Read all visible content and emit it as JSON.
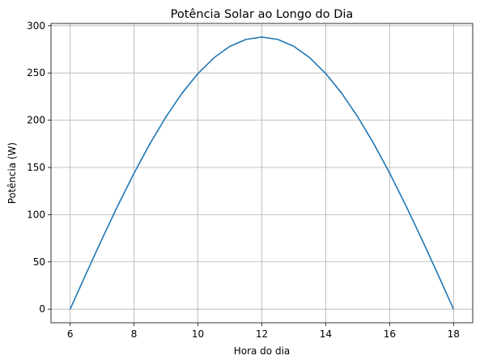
{
  "chart_data": {
    "type": "line",
    "title": "Potência Solar ao Longo do Dia",
    "xlabel": "Hora do dia",
    "ylabel": "Potência (W)",
    "xlim": [
      5.4,
      18.6
    ],
    "ylim": [
      -14.4,
      302.4
    ],
    "xticks": [
      6,
      8,
      10,
      12,
      14,
      16,
      18
    ],
    "yticks": [
      0,
      50,
      100,
      150,
      200,
      250,
      300
    ],
    "grid": true,
    "series": [
      {
        "color": "#1f77b4",
        "x": [
          6,
          6.5,
          7,
          7.5,
          8,
          8.5,
          9,
          9.5,
          10,
          10.5,
          11,
          11.5,
          12,
          12.5,
          13,
          13.5,
          14,
          14.5,
          15,
          15.5,
          16,
          16.5,
          17,
          17.5,
          18
        ],
        "y": [
          0,
          37.6,
          74.5,
          110.2,
          144,
          175.3,
          203.6,
          228.5,
          249.4,
          266.1,
          278.2,
          285.5,
          288,
          285.5,
          278.2,
          266.1,
          249.4,
          228.5,
          203.6,
          175.3,
          144,
          110.2,
          74.5,
          37.6,
          0
        ]
      }
    ]
  }
}
